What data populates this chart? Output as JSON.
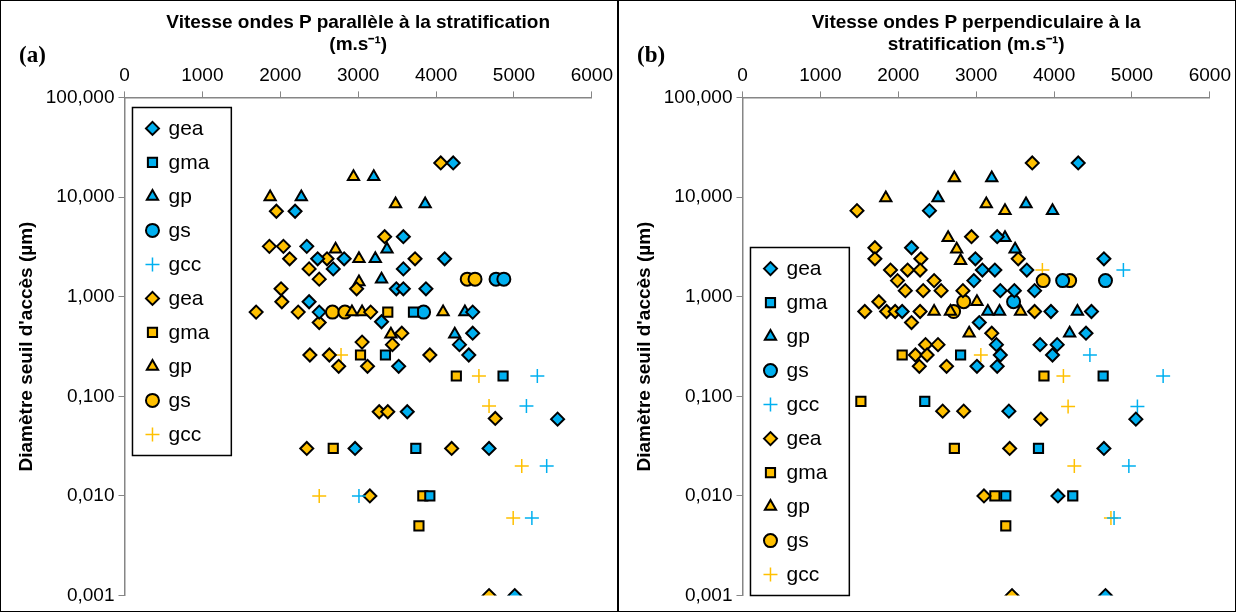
{
  "chart_data": [
    {
      "type": "scatter",
      "xlabel": "Vitesse ondes P parallèle à la stratification (m.s⁻¹)",
      "ylabel": "Diamètre seuil d'accès (µm)",
      "annotations": [
        "(a)"
      ],
      "xlim": [
        0,
        6000
      ],
      "xticks": [
        0,
        1000,
        2000,
        3000,
        4000,
        5000,
        6000
      ],
      "ylim": [
        0.001,
        100
      ],
      "yticks": [
        {
          "value": 0.001,
          "label": "0,001"
        },
        {
          "value": 0.01,
          "label": "0,010"
        },
        {
          "value": 0.1,
          "label": "0,100"
        },
        {
          "value": 1,
          "label": "1,000"
        },
        {
          "value": 10,
          "label": "10,000"
        },
        {
          "value": 100,
          "label": "100,000"
        }
      ],
      "log": "y",
      "legend": "top left",
      "series": [
        {
          "name": "gea",
          "color": "#00b0f0",
          "marker": "diamond",
          "x": [
            4220,
            2190,
            2340,
            3580,
            2820,
            4110,
            2480,
            2680,
            3580,
            3490,
            3580,
            3870,
            2370,
            2500,
            3300,
            4470,
            4470,
            4300,
            4420,
            3520,
            3630,
            5560,
            2960,
            4680,
            5010
          ],
          "values": [
            22,
            7.2,
            3.2,
            4,
            2.4,
            2.4,
            2.4,
            1.9,
            1.9,
            1.2,
            1.2,
            1.2,
            0.89,
            0.7,
            0.56,
            0.7,
            0.43,
            0.33,
            0.26,
            0.2,
            0.07,
            0.059,
            0.03,
            0.03,
            0.001
          ]
        },
        {
          "name": "gma",
          "color": "#00b0f0",
          "marker": "square",
          "x": [
            3710,
            3350,
            4860,
            3740,
            3920
          ],
          "values": [
            0.7,
            0.26,
            0.16,
            0.03,
            0.01
          ]
        },
        {
          "name": "gp",
          "color": "#00b0f0",
          "marker": "triangle",
          "x": [
            3200,
            2270,
            3860,
            3370,
            3220,
            3300,
            4370,
            4240
          ],
          "values": [
            16,
            10,
            8.5,
            3,
            2.4,
            1.5,
            0.7,
            0.42
          ]
        },
        {
          "name": "gs",
          "color": "#00b0f0",
          "marker": "circle",
          "x": [
            4770,
            4870,
            3840
          ],
          "values": [
            1.5,
            1.5,
            0.7
          ]
        },
        {
          "name": "gcc",
          "color": "#00b0f0",
          "marker": "cross",
          "x": [
            5300,
            5160,
            5420,
            5230,
            3010
          ],
          "values": [
            0.16,
            0.08,
            0.02,
            0.006,
            0.01
          ]
        },
        {
          "name": "gea",
          "color": "#ffc000",
          "marker": "diamond",
          "x": [
            4060,
            1950,
            1860,
            2040,
            3340,
            2120,
            2600,
            3730,
            2370,
            2500,
            2980,
            2010,
            2020,
            1690,
            2230,
            3160,
            2500,
            3560,
            3050,
            2380,
            2630,
            2750,
            3120,
            3920,
            3440,
            3270,
            3380,
            4760,
            2340,
            4200,
            3150,
            4680
          ],
          "values": [
            22,
            7.2,
            3.2,
            3.2,
            4,
            2.4,
            2.4,
            2.4,
            1.9,
            1.5,
            1.2,
            1.2,
            0.89,
            0.7,
            0.7,
            0.7,
            0.55,
            0.43,
            0.35,
            0.26,
            0.26,
            0.2,
            0.2,
            0.26,
            0.33,
            0.07,
            0.07,
            0.06,
            0.03,
            0.03,
            0.01,
            0.001
          ]
        },
        {
          "name": "gma",
          "color": "#ffc000",
          "marker": "square",
          "x": [
            3380,
            3030,
            4260,
            2680,
            3830,
            3780
          ],
          "values": [
            0.7,
            0.26,
            0.16,
            0.03,
            0.01,
            0.005
          ]
        },
        {
          "name": "gp",
          "color": "#ffc000",
          "marker": "triangle",
          "x": [
            2940,
            1870,
            3480,
            2710,
            3010,
            3010,
            2920,
            3050,
            4090,
            3420
          ],
          "values": [
            16,
            10,
            8.5,
            3,
            2.4,
            1.4,
            0.7,
            0.7,
            0.7,
            0.42
          ]
        },
        {
          "name": "gs",
          "color": "#ffc000",
          "marker": "circle",
          "x": [
            4400,
            4500,
            2670,
            2830
          ],
          "values": [
            1.5,
            1.5,
            0.7,
            0.7
          ]
        },
        {
          "name": "gcc",
          "color": "#ffc000",
          "marker": "cross",
          "x": [
            2780,
            4550,
            4680,
            5100,
            4990,
            2500
          ],
          "values": [
            0.26,
            0.16,
            0.08,
            0.02,
            0.006,
            0.01
          ]
        }
      ]
    },
    {
      "type": "scatter",
      "xlabel": "Vitesse ondes P perpendiculaire à la stratification (m.s⁻¹)",
      "ylabel": "Diamètre seuil d'accès (µm)",
      "annotations": [
        "(b)"
      ],
      "xlim": [
        0,
        6000
      ],
      "xticks": [
        0,
        1000,
        2000,
        3000,
        4000,
        5000,
        6000
      ],
      "ylim": [
        0.001,
        100
      ],
      "yticks": [
        {
          "value": 0.001,
          "label": "0,001"
        },
        {
          "value": 0.01,
          "label": "0,010"
        },
        {
          "value": 0.1,
          "label": "0,100"
        },
        {
          "value": 1,
          "label": "1,000"
        },
        {
          "value": 10,
          "label": "10,000"
        },
        {
          "value": 100,
          "label": "100,000"
        }
      ],
      "log": "y",
      "legend": "bottom left",
      "series": [
        {
          "name": "gea",
          "color": "#00b0f0",
          "marker": "diamond",
          "x": [
            4310,
            2400,
            2170,
            3270,
            2990,
            4640,
            3080,
            3240,
            3650,
            2970,
            3310,
            3490,
            3750,
            3960,
            4480,
            3040,
            4410,
            2050,
            3820,
            4040,
            3980,
            3260,
            3310,
            3010,
            3270,
            3420,
            5050,
            4640,
            4050,
            4660
          ],
          "values": [
            22,
            7.3,
            3.1,
            4,
            2.4,
            2.4,
            1.85,
            1.85,
            1.85,
            1.45,
            1.15,
            1.15,
            1.15,
            0.71,
            0.71,
            0.55,
            0.43,
            0.71,
            0.33,
            0.33,
            0.26,
            0.33,
            0.26,
            0.2,
            0.2,
            0.071,
            0.059,
            0.03,
            0.01,
            0.001
          ]
        },
        {
          "name": "gma",
          "color": "#00b0f0",
          "marker": "square",
          "x": [
            4630,
            2340,
            3800,
            4240,
            3380,
            2800
          ],
          "values": [
            0.16,
            0.089,
            0.03,
            0.01,
            0.01,
            0.26
          ]
        },
        {
          "name": "gp",
          "color": "#00b0f0",
          "marker": "triangle",
          "x": [
            3200,
            2510,
            3640,
            3980,
            3370,
            3500,
            3300,
            3150,
            4300,
            4200
          ],
          "values": [
            15.5,
            9.8,
            8.5,
            7.3,
            3.9,
            3,
            0.71,
            0.71,
            0.71,
            0.43
          ]
        },
        {
          "name": "gs",
          "color": "#00b0f0",
          "marker": "circle",
          "x": [
            4660,
            4110,
            3480
          ],
          "values": [
            1.45,
            1.45,
            0.89
          ]
        },
        {
          "name": "gcc",
          "color": "#00b0f0",
          "marker": "cross",
          "x": [
            4890,
            4460,
            5400,
            5070,
            4960,
            4770
          ],
          "values": [
            1.85,
            0.26,
            0.16,
            0.079,
            0.02,
            0.006
          ]
        },
        {
          "name": "gea",
          "color": "#ffc000",
          "marker": "diamond",
          "x": [
            3720,
            1470,
            1700,
            2940,
            1700,
            2290,
            3540,
            1900,
            2120,
            2280,
            1990,
            2460,
            2090,
            2320,
            2550,
            2830,
            1750,
            1570,
            1850,
            1960,
            2280,
            3750,
            2170,
            3200,
            2350,
            2510,
            2220,
            2370,
            2270,
            2620,
            2570,
            2840,
            3830,
            3430,
            3100,
            3460
          ],
          "values": [
            22,
            7.3,
            3.1,
            4,
            2.4,
            2.4,
            2.4,
            1.85,
            1.85,
            1.85,
            1.45,
            1.45,
            1.15,
            1.15,
            1.15,
            1.15,
            0.89,
            0.71,
            0.71,
            0.71,
            0.71,
            0.71,
            0.55,
            0.43,
            0.33,
            0.33,
            0.26,
            0.26,
            0.2,
            0.2,
            0.071,
            0.071,
            0.059,
            0.03,
            0.01,
            0.001
          ]
        },
        {
          "name": "gma",
          "color": "#ffc000",
          "marker": "square",
          "x": [
            2050,
            3870,
            1520,
            2720,
            3240,
            3380
          ],
          "values": [
            0.26,
            0.16,
            0.089,
            0.03,
            0.01,
            0.005
          ]
        },
        {
          "name": "gp",
          "color": "#ffc000",
          "marker": "triangle",
          "x": [
            2720,
            1840,
            3130,
            3370,
            2640,
            2750,
            2800,
            2460,
            2670,
            3570,
            3010,
            2910
          ],
          "values": [
            15.5,
            9.8,
            8.5,
            7.3,
            3.9,
            3,
            2.3,
            0.71,
            0.71,
            0.71,
            0.89,
            0.43
          ]
        },
        {
          "name": "gs",
          "color": "#ffc000",
          "marker": "circle",
          "x": [
            3860,
            4200,
            2840,
            2710
          ],
          "values": [
            1.45,
            1.45,
            0.89,
            0.71
          ]
        },
        {
          "name": "gcc",
          "color": "#ffc000",
          "marker": "cross",
          "x": [
            3850,
            3060,
            4120,
            4180,
            4260,
            4730
          ],
          "values": [
            1.85,
            0.26,
            0.16,
            0.079,
            0.02,
            0.006
          ]
        }
      ]
    }
  ]
}
